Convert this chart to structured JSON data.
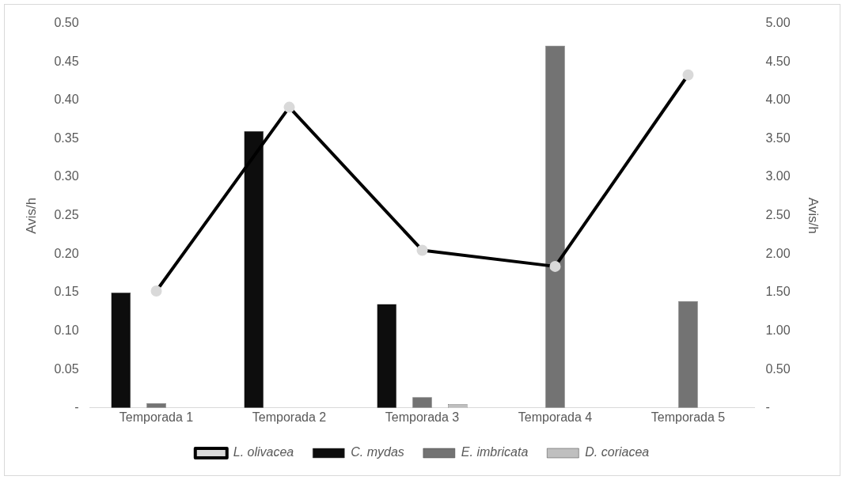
{
  "chart_data": {
    "type": "bar",
    "ylabel": "Avis/h",
    "y2label": "Avis/h",
    "categories": [
      "Temporada 1",
      "Temporada 2",
      "Temporada 3",
      "Temporada 4",
      "Temporada 5"
    ],
    "series": [
      {
        "name": "C. mydas",
        "color": "#0d0d0d",
        "values": [
          0.15,
          0.36,
          0.135,
          null,
          null
        ]
      },
      {
        "name": "E. imbricata",
        "color": "#737373",
        "values": [
          0.006,
          null,
          0.014,
          0.471,
          0.139
        ]
      },
      {
        "name": "D. coriacea",
        "color": "#bfbfbf",
        "values": [
          null,
          null,
          0.005,
          null,
          null
        ]
      },
      {
        "name": "L. olivacea",
        "type": "line",
        "axis": "y2",
        "color": "#000000",
        "marker": "circle",
        "values": [
          1.52,
          3.91,
          2.05,
          1.84,
          4.33
        ]
      }
    ],
    "ylim": [
      0,
      0.5
    ],
    "yticks": [
      {
        "value": 0,
        "label": "-"
      },
      {
        "value": 0.05,
        "label": "0.05"
      },
      {
        "value": 0.1,
        "label": "0.10"
      },
      {
        "value": 0.15,
        "label": "0.15"
      },
      {
        "value": 0.2,
        "label": "0.20"
      },
      {
        "value": 0.25,
        "label": "0.25"
      },
      {
        "value": 0.3,
        "label": "0.30"
      },
      {
        "value": 0.35,
        "label": "0.35"
      },
      {
        "value": 0.4,
        "label": "0.40"
      },
      {
        "value": 0.45,
        "label": "0.45"
      },
      {
        "value": 0.5,
        "label": "0.50"
      }
    ],
    "y2lim": [
      0,
      5
    ],
    "y2ticks": [
      {
        "value": 0,
        "label": "-"
      },
      {
        "value": 0.5,
        "label": "0.50"
      },
      {
        "value": 1,
        "label": "1.00"
      },
      {
        "value": 1.5,
        "label": "1.50"
      },
      {
        "value": 2,
        "label": "2.00"
      },
      {
        "value": 2.5,
        "label": "2.50"
      },
      {
        "value": 3,
        "label": "3.00"
      },
      {
        "value": 3.5,
        "label": "3.50"
      },
      {
        "value": 4,
        "label": "4.00"
      },
      {
        "value": 4.5,
        "label": "4.50"
      },
      {
        "value": 5,
        "label": "5.00"
      }
    ],
    "legend": "bottom"
  }
}
